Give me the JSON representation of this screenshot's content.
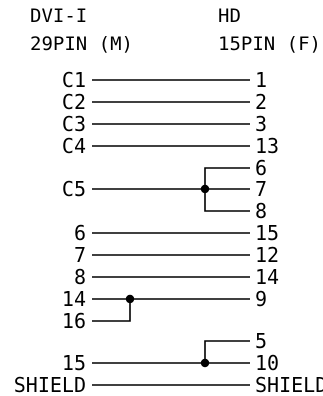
{
  "header": {
    "left_line1": "DVI-I",
    "left_line2": "29PIN  (M)",
    "right_line1": "HD",
    "right_line2": "15PIN  (F)"
  },
  "rows": [
    {
      "left": "C1",
      "right": "1"
    },
    {
      "left": "C2",
      "right": "2"
    },
    {
      "left": "C3",
      "right": "3"
    },
    {
      "left": "C4",
      "right": "13"
    },
    {
      "left": "",
      "right": "6"
    },
    {
      "left": "C5",
      "right": "7"
    },
    {
      "left": "",
      "right": "8"
    },
    {
      "left": "6",
      "right": "15"
    },
    {
      "left": "7",
      "right": "12"
    },
    {
      "left": "8",
      "right": "14"
    },
    {
      "left": "14",
      "right": "9"
    },
    {
      "left": "16",
      "right": ""
    },
    {
      "left": "",
      "right": "5"
    },
    {
      "left": "15",
      "right": "10"
    },
    {
      "left": "SHIELD",
      "right": "SHIELD"
    }
  ]
}
